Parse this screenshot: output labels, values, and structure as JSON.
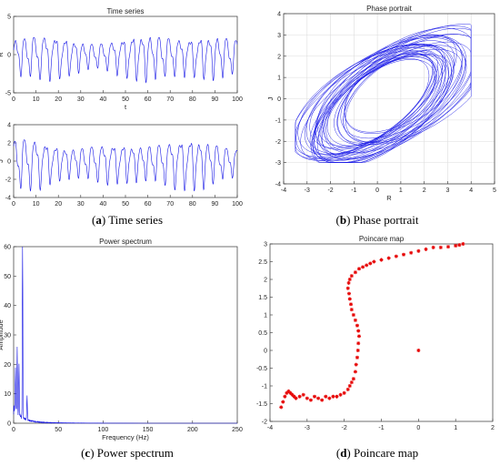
{
  "captions": {
    "a": {
      "letter": "a",
      "text": "Time series"
    },
    "b": {
      "letter": "b",
      "text": "Phase portrait"
    },
    "c": {
      "letter": "c",
      "text": "Power spectrum"
    },
    "d": {
      "letter": "d",
      "text": "Poincare map"
    }
  },
  "colors": {
    "line": "#1515e6",
    "marker": "#e60000",
    "axis": "#333333",
    "grid": "#dddddd"
  },
  "chart_data": [
    {
      "id": "ts_R",
      "type": "line",
      "title": "Time series",
      "xlabel": "t",
      "ylabel": "R",
      "xlim": [
        0,
        100
      ],
      "ylim": [
        -5,
        5
      ],
      "xticks": [
        0,
        10,
        20,
        30,
        40,
        50,
        60,
        70,
        80,
        90,
        100
      ],
      "yticks": [
        -5,
        0,
        5
      ],
      "grid": false,
      "series": [
        {
          "period": 4.3,
          "amplitude": 3.2
        }
      ]
    },
    {
      "id": "ts_J",
      "type": "line",
      "title": "",
      "xlabel": "",
      "ylabel": "J",
      "xlim": [
        0,
        100
      ],
      "ylim": [
        -4,
        4
      ],
      "xticks": [
        0,
        10,
        20,
        30,
        40,
        50,
        60,
        70,
        80,
        90,
        100
      ],
      "yticks": [
        -4,
        -2,
        0,
        2,
        4
      ],
      "grid": false,
      "series": [
        {
          "period": 4.3,
          "amplitude": 2.8
        }
      ]
    },
    {
      "id": "phase",
      "type": "line",
      "title": "Phase portrait",
      "xlabel": "R",
      "ylabel": "J",
      "xlim": [
        -4,
        5
      ],
      "ylim": [
        -4,
        4
      ],
      "xticks": [
        -4,
        -3,
        -2,
        -1,
        0,
        1,
        2,
        3,
        4,
        5
      ],
      "yticks": [
        -4,
        -3,
        -2,
        -1,
        0,
        1,
        2,
        3,
        4
      ],
      "grid": true,
      "series": [
        {
          "center_R": 0.4,
          "center_J": 0.0,
          "extent_R": [
            -3.5,
            4.0
          ],
          "extent_J": [
            -3.0,
            3.6
          ]
        }
      ]
    },
    {
      "id": "spectrum",
      "type": "line",
      "title": "Power spectrum",
      "xlabel": "Frequency (Hz)",
      "ylabel": "Amplitude",
      "xlim": [
        0,
        250
      ],
      "ylim": [
        0,
        60
      ],
      "xticks": [
        0,
        50,
        100,
        150,
        200,
        250
      ],
      "yticks": [
        0,
        10,
        20,
        30,
        40,
        50,
        60
      ],
      "grid": false,
      "series": [
        {
          "peaks": [
            [
              10,
              60
            ],
            [
              4,
              22
            ],
            [
              6,
              18
            ],
            [
              2,
              14
            ],
            [
              15,
              8
            ]
          ]
        }
      ]
    },
    {
      "id": "poincare",
      "type": "scatter",
      "title": "Poincare map",
      "xlabel": "",
      "ylabel": "",
      "xlim": [
        -4,
        2
      ],
      "ylim": [
        -2,
        3
      ],
      "xticks": [
        -4,
        -3,
        -2,
        -1,
        0,
        1,
        2
      ],
      "yticks": [
        -2,
        -1.5,
        -1,
        -0.5,
        0,
        0.5,
        1,
        1.5,
        2,
        2.5,
        3
      ],
      "grid": false,
      "series": [
        {
          "x": [
            -3.7,
            -3.65,
            -3.6,
            -3.55,
            -3.5,
            -3.45,
            -3.4,
            -3.35,
            -3.3,
            -3.2,
            -3.1,
            -3.0,
            -2.9,
            -2.8,
            -2.7,
            -2.6,
            -2.5,
            -2.4,
            -2.3,
            -2.2,
            -2.1,
            -2.0,
            -1.9,
            -1.85,
            -1.8,
            -1.75,
            -1.7,
            -1.68,
            -1.65,
            -1.63,
            -1.62,
            -1.6,
            -1.62,
            -1.65,
            -1.7,
            -1.75,
            -1.8,
            -1.82,
            -1.85,
            -1.87,
            -1.9,
            -1.88,
            -1.85,
            -1.8,
            -1.7,
            -1.6,
            -1.5,
            -1.4,
            -1.3,
            -1.2,
            -1.0,
            -0.8,
            -0.6,
            -0.4,
            -0.2,
            0.0,
            0.2,
            0.4,
            0.6,
            0.8,
            1.0,
            1.1,
            1.2,
            0.0
          ],
          "y": [
            -1.6,
            -1.45,
            -1.3,
            -1.2,
            -1.15,
            -1.2,
            -1.25,
            -1.3,
            -1.35,
            -1.3,
            -1.25,
            -1.35,
            -1.4,
            -1.3,
            -1.35,
            -1.4,
            -1.3,
            -1.35,
            -1.3,
            -1.3,
            -1.25,
            -1.2,
            -1.1,
            -1.0,
            -0.9,
            -0.8,
            -0.6,
            -0.4,
            -0.2,
            0.0,
            0.2,
            0.4,
            0.55,
            0.7,
            0.85,
            1.0,
            1.15,
            1.3,
            1.45,
            1.6,
            1.75,
            1.9,
            2.0,
            2.1,
            2.2,
            2.3,
            2.35,
            2.4,
            2.45,
            2.5,
            2.55,
            2.6,
            2.65,
            2.7,
            2.75,
            2.8,
            2.85,
            2.9,
            2.9,
            2.92,
            2.95,
            2.97,
            3.0,
            0.0
          ]
        }
      ]
    }
  ]
}
